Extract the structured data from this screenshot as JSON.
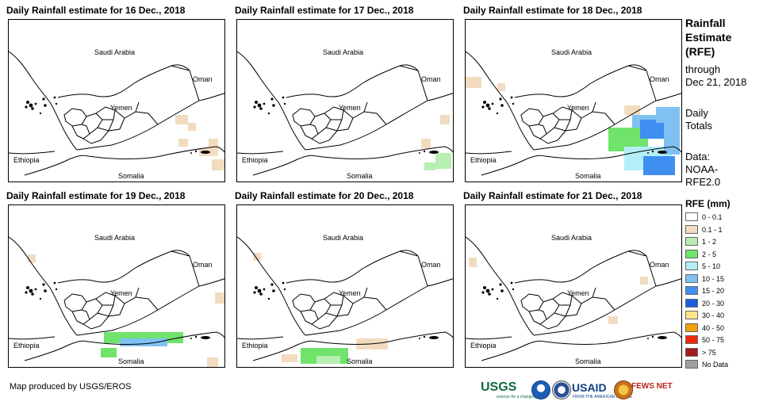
{
  "panels": [
    {
      "title": "Daily Rainfall estimate for 16 Dec., 2018",
      "rain": "d16"
    },
    {
      "title": "Daily Rainfall estimate for 17 Dec., 2018",
      "rain": "d17"
    },
    {
      "title": "Daily Rainfall estimate for 18 Dec., 2018",
      "rain": "d18"
    },
    {
      "title": "Daily Rainfall estimate for 19 Dec., 2018",
      "rain": "d19"
    },
    {
      "title": "Daily Rainfall estimate for 20 Dec., 2018",
      "rain": "d20"
    },
    {
      "title": "Daily Rainfall estimate for 21 Dec., 2018",
      "rain": "d21"
    }
  ],
  "map_labels": {
    "saudi_arabia": "Saudi Arabia",
    "oman": "Oman",
    "yemen": "Yemen",
    "ethiopia": "Ethiopia",
    "somalia": "Somalia"
  },
  "sidebar": {
    "title_line1": "Rainfall",
    "title_line2": "Estimate",
    "title_line3": "(RFE)",
    "through": "through",
    "date": "Dec 21, 2018",
    "daily1": "Daily",
    "daily2": "Totals",
    "data1": "Data:",
    "data2": "NOAA-",
    "data3": "RFE2.0"
  },
  "legend": {
    "title": "RFE (mm)",
    "items": [
      {
        "label": "0 - 0.1",
        "color": "#ffffff"
      },
      {
        "label": "0.1 - 1",
        "color": "#f2dcc0"
      },
      {
        "label": "1 - 2",
        "color": "#b6efb1"
      },
      {
        "label": "2 - 5",
        "color": "#6fe36a"
      },
      {
        "label": "5 - 10",
        "color": "#b4eef8"
      },
      {
        "label": "10 - 15",
        "color": "#7fc1f2"
      },
      {
        "label": "15 - 20",
        "color": "#3f8ff0"
      },
      {
        "label": "20 - 30",
        "color": "#1a5fe0"
      },
      {
        "label": "30 - 40",
        "color": "#ffe68a"
      },
      {
        "label": "40 - 50",
        "color": "#f5a00c"
      },
      {
        "label": "50 - 75",
        "color": "#ee2a0c"
      },
      {
        "label": "> 75",
        "color": "#a41a1a"
      },
      {
        "label": "No Data",
        "color": "#a0a0a0"
      }
    ]
  },
  "credit": "Map produced by USGS/EROS",
  "logos": {
    "usgs": "USGS",
    "usgs_tagline": "science for a changing world",
    "usaid": "USAID",
    "usaid_tagline": "FROM THE AMERICAN PEOPLE",
    "fews": "FEWS NET"
  }
}
